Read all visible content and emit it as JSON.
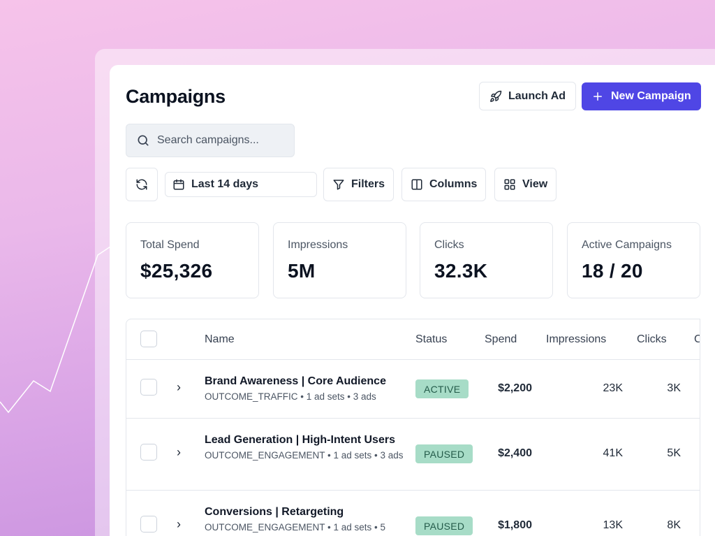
{
  "colors": {
    "accent": "#4f46e5",
    "badge_bg": "#a7dcc7",
    "badge_text": "#245b4a"
  },
  "header": {
    "title": "Campaigns",
    "launch_label": "Launch Ad",
    "launch_icon": "rocket-icon",
    "new_label": "New Campaign",
    "new_icon": "plus-icon"
  },
  "search": {
    "placeholder": "Search campaigns...",
    "icon": "search-icon"
  },
  "toolbar": {
    "refresh_icon": "refresh-icon",
    "date_range": "Last 14 days",
    "filters_label": "Filters",
    "columns_label": "Columns",
    "view_label": "View"
  },
  "stats": [
    {
      "label": "Total Spend",
      "value": "$25,326"
    },
    {
      "label": "Impressions",
      "value": "5M"
    },
    {
      "label": "Clicks",
      "value": "32.3K"
    },
    {
      "label": "Active Campaigns",
      "value": "18 / 20"
    }
  ],
  "table": {
    "columns": [
      "Name",
      "Status",
      "Spend",
      "Impressions",
      "Clicks",
      "C"
    ],
    "rows": [
      {
        "name": "Brand Awareness | Core Audience",
        "sub": "OUTCOME_TRAFFIC • 1 ad sets • 3 ads",
        "status": "ACTIVE",
        "spend": "$2,200",
        "impressions": "23K",
        "clicks": "3K"
      },
      {
        "name": "Lead Generation | High-Intent Users",
        "sub": "OUTCOME_ENGAGEMENT • 1 ad sets • 3 ads",
        "status": "PAUSED",
        "spend": "$2,400",
        "impressions": "41K",
        "clicks": "5K"
      },
      {
        "name": "Conversions | Retargeting",
        "sub": "OUTCOME_ENGAGEMENT • 1 ad sets • 5",
        "status": "PAUSED",
        "spend": "$1,800",
        "impressions": "13K",
        "clicks": "8K"
      }
    ]
  }
}
